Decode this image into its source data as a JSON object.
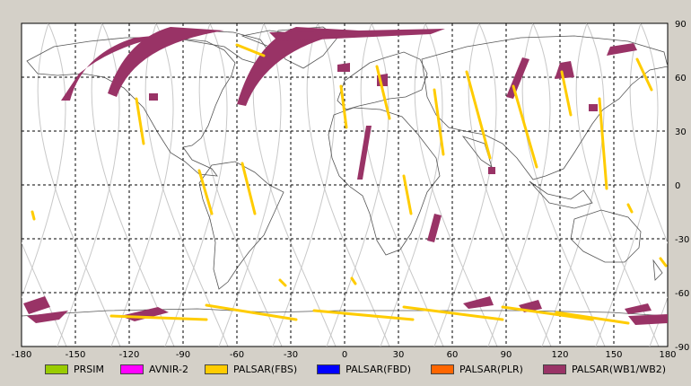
{
  "map": {
    "lon_range": [
      -180,
      180
    ],
    "lat_range": [
      -90,
      90
    ],
    "x_ticks": [
      "-180",
      "-150",
      "-120",
      "-90",
      "-60",
      "-30",
      "0",
      "30",
      "60",
      "90",
      "120",
      "150",
      "180"
    ],
    "y_ticks": [
      "90",
      "60",
      "30",
      "0",
      "-30",
      "-60",
      "-90"
    ],
    "grid": "dashed-black",
    "background": "#ffffff",
    "coastline_color": "#555555",
    "orbit_color": "#c8c8c8"
  },
  "legend": [
    {
      "label": "PRSIM",
      "color": "#99cc00"
    },
    {
      "label": "AVNIR-2",
      "color": "#ff00ff"
    },
    {
      "label": "PALSAR(FBS)",
      "color": "#ffcc00"
    },
    {
      "label": "PALSAR(FBD)",
      "color": "#0000ff"
    },
    {
      "label": "PALSAR(PLR)",
      "color": "#ff6600"
    },
    {
      "label": "PALSAR(WB1/WB2)",
      "color": "#993366"
    }
  ]
}
